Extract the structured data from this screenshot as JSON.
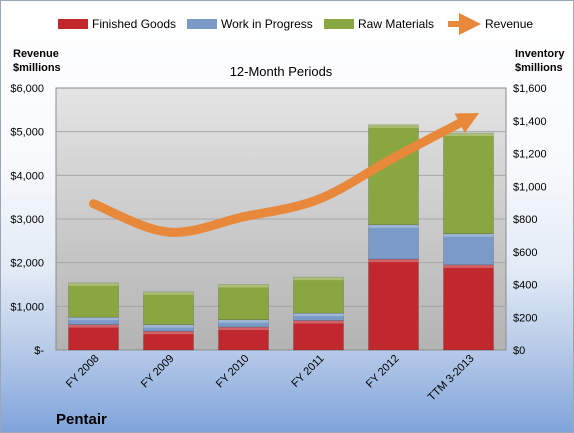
{
  "chart_data": {
    "type": "bar",
    "subtitle": "12-Month Periods",
    "company": "Pentair",
    "categories": [
      "FY 2008",
      "FY 2009",
      "FY 2010",
      "FY 2011",
      "FY 2012",
      "TTM 3-2013"
    ],
    "left_axis": {
      "label_line1": "Revenue",
      "label_line2": "$millions",
      "range": [
        0,
        6000
      ],
      "ticks": [
        0,
        1000,
        2000,
        3000,
        4000,
        5000,
        6000
      ],
      "tick_labels": [
        "$-",
        "$1,000",
        "$2,000",
        "$3,000",
        "$4,000",
        "$5,000",
        "$6,000"
      ]
    },
    "right_axis": {
      "label_line1": "Inventory",
      "label_line2": "$millions",
      "range": [
        0,
        1600
      ],
      "ticks": [
        0,
        200,
        400,
        600,
        800,
        1000,
        1200,
        1400,
        1600
      ],
      "tick_labels": [
        "$0",
        "$200",
        "$400",
        "$600",
        "$800",
        "$1,000",
        "$1,200",
        "$1,400",
        "$1,600"
      ]
    },
    "stacked_series": [
      {
        "name": "Finished Goods",
        "color": "#c0282d",
        "axis": "right",
        "values": [
          155,
          115,
          140,
          180,
          555,
          520
        ]
      },
      {
        "name": "Work in Progress",
        "color": "#7a9ac8",
        "axis": "right",
        "values": [
          45,
          40,
          45,
          45,
          210,
          190
        ]
      },
      {
        "name": "Raw Materials",
        "color": "#8aa640",
        "axis": "right",
        "values": [
          210,
          200,
          215,
          220,
          610,
          615
        ]
      }
    ],
    "line_series": {
      "name": "Revenue",
      "color": "#e8883a",
      "axis": "left",
      "values": [
        3350,
        2700,
        3050,
        3450,
        4400,
        5300
      ]
    },
    "grid": true,
    "legend_position": "top"
  }
}
